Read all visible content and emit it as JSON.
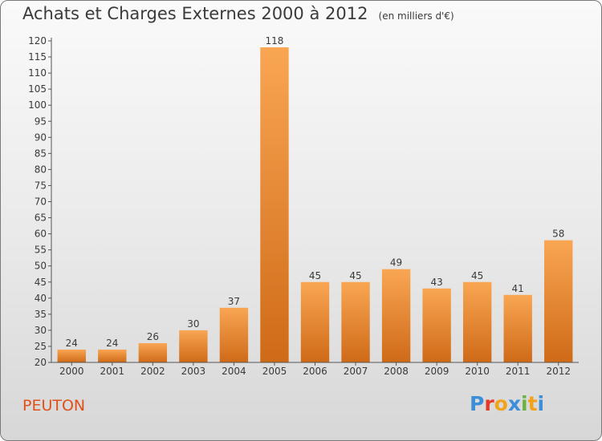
{
  "chart_data": {
    "type": "bar",
    "title": "Achats et Charges Externes 2000 à 2012",
    "subtitle": "(en milliers d'€)",
    "categories": [
      "2000",
      "2001",
      "2002",
      "2003",
      "2004",
      "2005",
      "2006",
      "2007",
      "2008",
      "2009",
      "2010",
      "2011",
      "2012"
    ],
    "values": [
      24,
      24,
      26,
      30,
      37,
      118,
      45,
      45,
      49,
      43,
      45,
      41,
      58
    ],
    "ylim": [
      20,
      120
    ],
    "yticks": [
      20,
      25,
      30,
      35,
      40,
      45,
      50,
      55,
      60,
      65,
      70,
      75,
      80,
      85,
      90,
      95,
      100,
      105,
      110,
      115,
      120
    ],
    "grid": false,
    "bar_color_top": "#f9a653",
    "bar_color_bottom": "#cf6a17"
  },
  "footer": {
    "place": "PEUTON",
    "logo": "Proxiti",
    "logo_colors": [
      "#3d8ed8",
      "#e23a26",
      "#f2a31b",
      "#3d8ed8",
      "#6ab33e",
      "#f2a31b",
      "#3d8ed8"
    ],
    "place_color": "#e0501b"
  }
}
